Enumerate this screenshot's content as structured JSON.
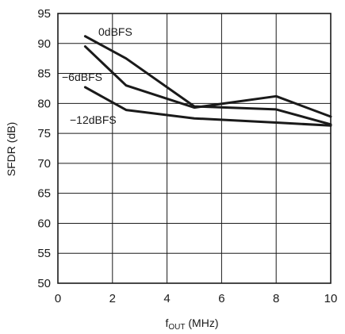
{
  "chart_data": {
    "type": "line",
    "title": "",
    "xlabel": "f",
    "xlabel_sub": "OUT",
    "xlabel_unit": " (MHz)",
    "ylabel": "SFDR (dB)",
    "xlim": [
      0,
      10
    ],
    "ylim": [
      50,
      95
    ],
    "xticks": [
      0,
      2,
      4,
      6,
      8,
      10
    ],
    "yticks": [
      50,
      55,
      60,
      65,
      70,
      75,
      80,
      85,
      90,
      95
    ],
    "grid": true,
    "series": [
      {
        "name": "0dBFS",
        "x": [
          1,
          2.5,
          5,
          8,
          10
        ],
        "y": [
          91.2,
          87.5,
          79.5,
          79,
          76.5
        ]
      },
      {
        "name": "−6dBFS",
        "x": [
          1,
          2.5,
          5,
          8,
          10
        ],
        "y": [
          89.5,
          83,
          79.3,
          81.2,
          77.8
        ]
      },
      {
        "name": "−12dBFS",
        "x": [
          1,
          2.5,
          5,
          8,
          10
        ],
        "y": [
          82.7,
          78.9,
          77.5,
          76.8,
          76.3
        ]
      }
    ]
  }
}
